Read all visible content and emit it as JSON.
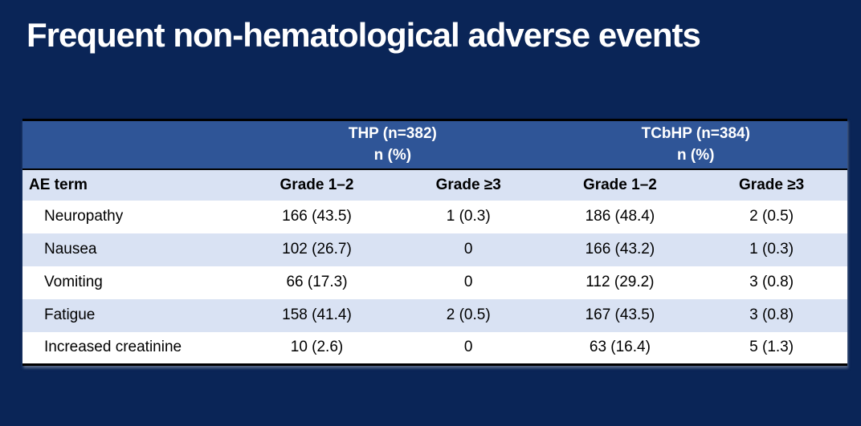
{
  "slide": {
    "title": "Frequent non-hematological adverse events",
    "colors": {
      "background": "#0a2557",
      "table_header_blue": "#2f5597",
      "row_light_blue": "#d9e2f3",
      "row_white": "#ffffff",
      "border_black": "#000000",
      "title_text": "#ffffff",
      "table_text": "#000000"
    },
    "table": {
      "group_headers": [
        {
          "line1": "THP (n=382)",
          "line2": "n (%)"
        },
        {
          "line1": "TCbHP (n=384)",
          "line2": "n (%)"
        }
      ],
      "columns": [
        "AE term",
        "Grade 1–2",
        "Grade ≥3",
        "Grade 1–2",
        "Grade ≥3"
      ],
      "rows": [
        {
          "term": "Neuropathy",
          "values": [
            "166 (43.5)",
            "1 (0.3)",
            "186 (48.4)",
            "2 (0.5)"
          ]
        },
        {
          "term": "Nausea",
          "values": [
            "102 (26.7)",
            "0",
            "166 (43.2)",
            "1 (0.3)"
          ]
        },
        {
          "term": "Vomiting",
          "values": [
            "66 (17.3)",
            "0",
            "112 (29.2)",
            "3 (0.8)"
          ]
        },
        {
          "term": "Fatigue",
          "values": [
            "158 (41.4)",
            "2 (0.5)",
            "167 (43.5)",
            "3 (0.8)"
          ]
        },
        {
          "term": "Increased creatinine",
          "values": [
            "10 (2.6)",
            "0",
            "63 (16.4)",
            "5 (1.3)"
          ]
        }
      ]
    }
  }
}
